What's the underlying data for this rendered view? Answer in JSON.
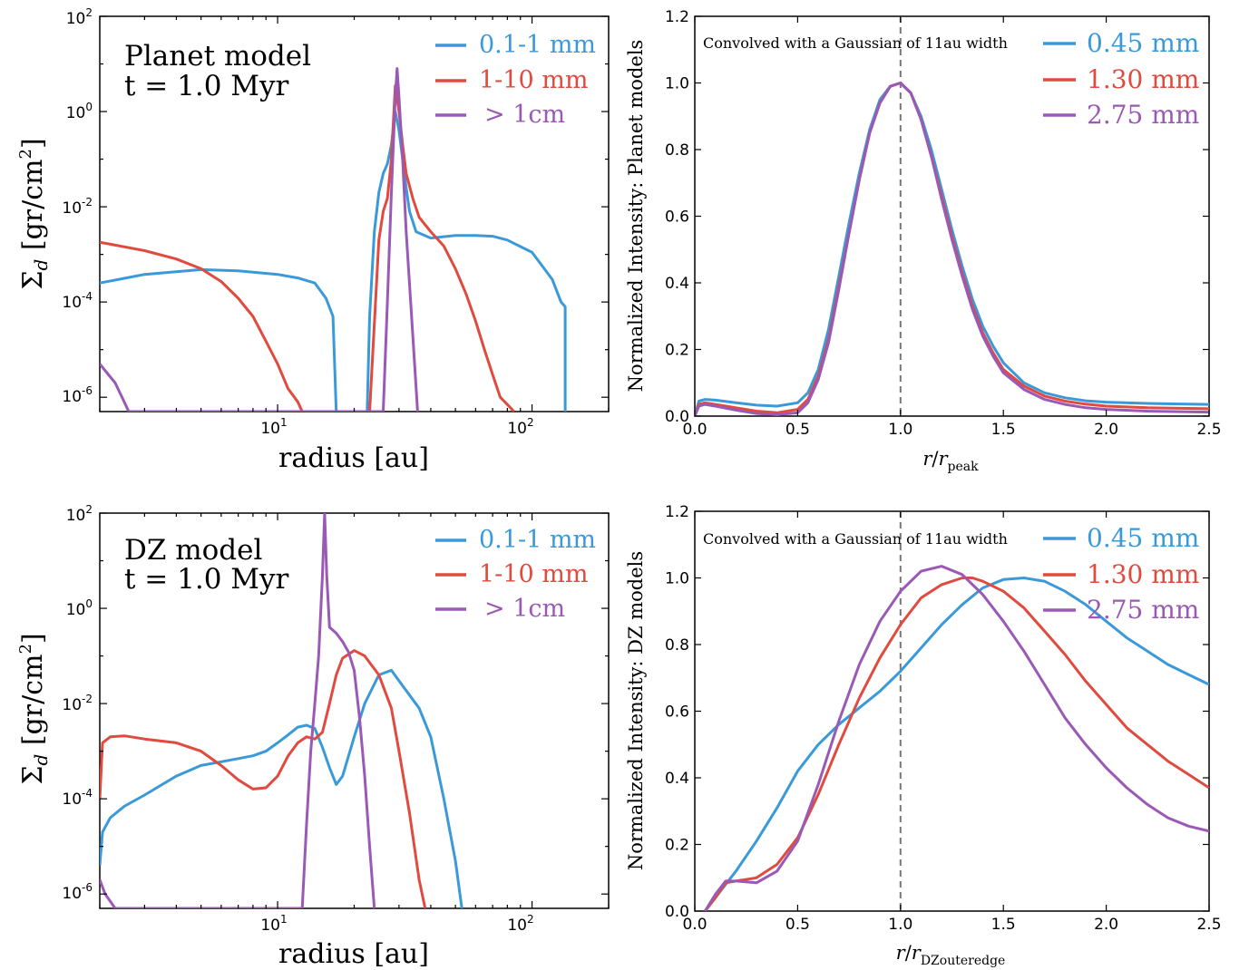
{
  "colors": {
    "blue": "#3a9ad9",
    "red": "#e04a3f",
    "purple": "#9b59b6",
    "axis": "#000000",
    "dash": "#777777"
  },
  "chart_data": [
    {
      "type": "line",
      "annotation": [
        "Planet model",
        "t = 1.0 Myr"
      ],
      "xlabel": "radius [au]",
      "ylabel": "Σ_d [gr/cm²]",
      "xscale": "log",
      "yscale": "log",
      "xlim": [
        2,
        200
      ],
      "ylim": [
        5e-07,
        100
      ],
      "xtick_labels": [
        "10^1",
        "10^2"
      ],
      "ytick_labels": [
        "10^2",
        "10^0",
        "10^-2",
        "10^-4",
        "10^-6"
      ],
      "legend": "top-right",
      "series": [
        {
          "name": "0.1-1 mm",
          "color": "blue",
          "x": [
            2,
            3,
            5,
            7,
            10,
            12,
            14,
            15.5,
            16.5,
            17,
            22.5,
            23,
            24,
            25,
            26,
            27,
            28,
            29,
            30,
            31,
            32,
            33,
            35,
            40,
            50,
            60,
            70,
            80,
            100,
            120,
            130,
            135,
            135
          ],
          "y": [
            0.00025,
            0.00038,
            0.00048,
            0.00045,
            0.00038,
            0.00032,
            0.00025,
            0.00012,
            5e-05,
            5e-07,
            5e-07,
            5e-05,
            0.003,
            0.02,
            0.05,
            0.08,
            0.2,
            1.0,
            0.4,
            0.1,
            0.025,
            0.008,
            0.003,
            0.0022,
            0.0025,
            0.0025,
            0.0024,
            0.002,
            0.0011,
            0.0003,
            0.0001,
            8e-05,
            5e-07
          ]
        },
        {
          "name": "1-10 mm",
          "color": "red",
          "x": [
            2,
            3,
            4,
            5,
            6,
            7,
            8,
            9,
            10,
            11,
            12,
            12.5,
            23,
            25,
            26,
            27,
            28,
            29,
            30,
            31,
            32,
            34,
            36,
            40,
            45,
            50,
            55,
            60,
            65,
            70,
            75,
            80,
            85
          ],
          "y": [
            0.0018,
            0.0012,
            0.0008,
            0.0005,
            0.00027,
            0.00012,
            5e-05,
            1.5e-05,
            5e-06,
            1.5e-06,
            8e-07,
            5e-07,
            5e-07,
            0.002,
            0.008,
            0.015,
            0.1,
            3.5,
            1.0,
            0.2,
            0.05,
            0.015,
            0.006,
            0.003,
            0.0015,
            0.0005,
            0.00015,
            4e-05,
            1e-05,
            3e-06,
            1e-06,
            7e-07,
            5e-07
          ]
        },
        {
          "name": "> 1cm",
          "color": "purple",
          "x": [
            2,
            2.3,
            2.6,
            26,
            27,
            28,
            29,
            29.5,
            30,
            31,
            32,
            34,
            35.5
          ],
          "y": [
            5e-06,
            2e-06,
            5e-07,
            5e-07,
            0.0001,
            0.02,
            2.0,
            8.0,
            2.0,
            0.1,
            0.003,
            2e-05,
            5e-07
          ]
        }
      ]
    },
    {
      "type": "line",
      "note": "Convolved with a Gaussian of 11au width",
      "xlabel": "r/r_peak",
      "ylabel": "Normalized Intensity: Planet models",
      "xlim": [
        0,
        2.5
      ],
      "ylim": [
        0,
        1.2
      ],
      "xticks": [
        0.0,
        0.5,
        1.0,
        1.5,
        2.0,
        2.5
      ],
      "yticks": [
        0.0,
        0.2,
        0.4,
        0.6,
        0.8,
        1.0,
        1.2
      ],
      "vline": 1.0,
      "legend": "top-right",
      "series": [
        {
          "name": "0.45 mm",
          "color": "blue",
          "x": [
            0,
            0.02,
            0.05,
            0.1,
            0.2,
            0.3,
            0.4,
            0.5,
            0.55,
            0.6,
            0.65,
            0.7,
            0.75,
            0.8,
            0.85,
            0.9,
            0.95,
            1.0,
            1.05,
            1.1,
            1.15,
            1.2,
            1.25,
            1.3,
            1.35,
            1.4,
            1.45,
            1.5,
            1.6,
            1.7,
            1.8,
            1.9,
            2.0,
            2.2,
            2.5
          ],
          "y": [
            0.0,
            0.045,
            0.05,
            0.048,
            0.04,
            0.033,
            0.03,
            0.04,
            0.07,
            0.14,
            0.26,
            0.42,
            0.58,
            0.73,
            0.86,
            0.95,
            0.99,
            1.0,
            0.97,
            0.9,
            0.8,
            0.68,
            0.56,
            0.45,
            0.35,
            0.27,
            0.21,
            0.16,
            0.1,
            0.07,
            0.055,
            0.046,
            0.042,
            0.038,
            0.035
          ]
        },
        {
          "name": "1.30 mm",
          "color": "red",
          "x": [
            0,
            0.02,
            0.05,
            0.1,
            0.2,
            0.3,
            0.4,
            0.5,
            0.55,
            0.6,
            0.65,
            0.7,
            0.75,
            0.8,
            0.85,
            0.9,
            0.95,
            1.0,
            1.05,
            1.1,
            1.15,
            1.2,
            1.25,
            1.3,
            1.35,
            1.4,
            1.45,
            1.5,
            1.6,
            1.7,
            1.8,
            1.9,
            2.0,
            2.2,
            2.5
          ],
          "y": [
            0.0,
            0.035,
            0.04,
            0.035,
            0.025,
            0.015,
            0.01,
            0.02,
            0.05,
            0.12,
            0.23,
            0.39,
            0.55,
            0.71,
            0.85,
            0.94,
            0.99,
            1.0,
            0.97,
            0.89,
            0.78,
            0.66,
            0.54,
            0.43,
            0.33,
            0.25,
            0.19,
            0.14,
            0.09,
            0.06,
            0.045,
            0.036,
            0.03,
            0.025,
            0.022
          ]
        },
        {
          "name": "2.75 mm",
          "color": "purple",
          "x": [
            0,
            0.02,
            0.05,
            0.1,
            0.2,
            0.3,
            0.4,
            0.5,
            0.55,
            0.6,
            0.65,
            0.7,
            0.75,
            0.8,
            0.85,
            0.9,
            0.95,
            1.0,
            1.05,
            1.1,
            1.15,
            1.2,
            1.25,
            1.3,
            1.35,
            1.4,
            1.45,
            1.5,
            1.6,
            1.7,
            1.8,
            1.9,
            2.0,
            2.2,
            2.5
          ],
          "y": [
            0.0,
            0.03,
            0.035,
            0.03,
            0.018,
            0.008,
            0.004,
            0.01,
            0.04,
            0.11,
            0.22,
            0.38,
            0.55,
            0.71,
            0.85,
            0.94,
            0.99,
            1.0,
            0.97,
            0.89,
            0.78,
            0.65,
            0.53,
            0.42,
            0.32,
            0.24,
            0.18,
            0.13,
            0.08,
            0.05,
            0.035,
            0.025,
            0.02,
            0.015,
            0.012
          ]
        }
      ]
    },
    {
      "type": "line",
      "annotation": [
        "DZ model",
        "t = 1.0 Myr"
      ],
      "xlabel": "radius [au]",
      "ylabel": "Σ_d [gr/cm²]",
      "xscale": "log",
      "yscale": "log",
      "xlim": [
        2,
        200
      ],
      "ylim": [
        5e-07,
        100
      ],
      "xtick_labels": [
        "10^1",
        "10^2"
      ],
      "ytick_labels": [
        "10^2",
        "10^0",
        "10^-2",
        "10^-4",
        "10^-6"
      ],
      "legend": "top-right",
      "series": [
        {
          "name": "0.1-1 mm",
          "color": "blue",
          "x": [
            2,
            2.05,
            2.2,
            2.5,
            3,
            4,
            5,
            6,
            7,
            8,
            9,
            10,
            11,
            12,
            13,
            14,
            15,
            16,
            17,
            18,
            20,
            22,
            25,
            28,
            30,
            33,
            36,
            40,
            45,
            50,
            53
          ],
          "y": [
            4e-06,
            2e-05,
            4e-05,
            7e-05,
            0.00012,
            0.0003,
            0.0005,
            0.0006,
            0.0007,
            0.0008,
            0.001,
            0.0015,
            0.0022,
            0.0032,
            0.0035,
            0.003,
            0.0012,
            0.00045,
            0.0002,
            0.0003,
            0.002,
            0.01,
            0.04,
            0.05,
            0.03,
            0.015,
            0.008,
            0.002,
            0.0001,
            5e-06,
            5e-07
          ]
        },
        {
          "name": "1-10 mm",
          "color": "red",
          "x": [
            2,
            2.05,
            2.2,
            2.5,
            3,
            4,
            5,
            6,
            7,
            8,
            9,
            10,
            11,
            12,
            13,
            14,
            15,
            16,
            17,
            18,
            20,
            22,
            25,
            28,
            30,
            33,
            36,
            38
          ],
          "y": [
            0.0001,
            0.0015,
            0.002,
            0.0021,
            0.0018,
            0.0015,
            0.001,
            0.0005,
            0.00025,
            0.00016,
            0.00017,
            0.0003,
            0.0008,
            0.0015,
            0.002,
            0.0018,
            0.0025,
            0.01,
            0.04,
            0.09,
            0.13,
            0.1,
            0.04,
            0.008,
            0.001,
            5e-05,
            2e-06,
            5e-07
          ]
        },
        {
          "name": "> 1cm",
          "color": "purple",
          "x": [
            2,
            2.1,
            2.2,
            2.3,
            12.5,
            13,
            13.5,
            14,
            14.5,
            15,
            15.3,
            15.6,
            16,
            17,
            18,
            19,
            20,
            21,
            22,
            23,
            24
          ],
          "y": [
            2e-06,
            1e-06,
            7e-07,
            5e-07,
            5e-07,
            3e-05,
            0.001,
            0.01,
            0.1,
            5.0,
            100,
            5.0,
            0.4,
            0.3,
            0.2,
            0.12,
            0.05,
            0.005,
            0.0003,
            1e-05,
            5e-07
          ]
        }
      ]
    },
    {
      "type": "line",
      "note": "Convolved with a Gaussian of 11au width",
      "xlabel": "r/r_DZouteredge",
      "ylabel": "Normalized Intensity: DZ models",
      "xlim": [
        0,
        2.5
      ],
      "ylim": [
        0,
        1.2
      ],
      "xticks": [
        0.0,
        0.5,
        1.0,
        1.5,
        2.0,
        2.5
      ],
      "yticks": [
        0.0,
        0.2,
        0.4,
        0.6,
        0.8,
        1.0,
        1.2
      ],
      "vline": 1.0,
      "legend": "top-right",
      "series": [
        {
          "name": "0.45 mm",
          "color": "blue",
          "x": [
            0.05,
            0.1,
            0.15,
            0.2,
            0.3,
            0.4,
            0.5,
            0.6,
            0.7,
            0.8,
            0.9,
            1.0,
            1.1,
            1.2,
            1.3,
            1.4,
            1.5,
            1.6,
            1.7,
            1.8,
            1.9,
            2.0,
            2.1,
            2.2,
            2.3,
            2.4,
            2.5
          ],
          "y": [
            0.0,
            0.04,
            0.08,
            0.12,
            0.21,
            0.31,
            0.42,
            0.5,
            0.56,
            0.61,
            0.66,
            0.72,
            0.79,
            0.86,
            0.92,
            0.97,
            0.995,
            1.0,
            0.99,
            0.96,
            0.92,
            0.87,
            0.82,
            0.78,
            0.74,
            0.71,
            0.68
          ]
        },
        {
          "name": "1.30 mm",
          "color": "red",
          "x": [
            0.05,
            0.1,
            0.15,
            0.2,
            0.3,
            0.4,
            0.5,
            0.6,
            0.7,
            0.8,
            0.9,
            1.0,
            1.1,
            1.2,
            1.3,
            1.35,
            1.4,
            1.5,
            1.6,
            1.7,
            1.8,
            1.9,
            2.0,
            2.1,
            2.2,
            2.3,
            2.4,
            2.5
          ],
          "y": [
            0.0,
            0.04,
            0.085,
            0.09,
            0.1,
            0.14,
            0.22,
            0.35,
            0.5,
            0.64,
            0.76,
            0.86,
            0.94,
            0.98,
            1.0,
            1.0,
            0.99,
            0.96,
            0.91,
            0.84,
            0.77,
            0.69,
            0.62,
            0.55,
            0.5,
            0.45,
            0.41,
            0.37
          ]
        },
        {
          "name": "2.75 mm",
          "color": "purple",
          "x": [
            0.05,
            0.1,
            0.15,
            0.2,
            0.3,
            0.4,
            0.5,
            0.6,
            0.7,
            0.8,
            0.9,
            1.0,
            1.1,
            1.2,
            1.3,
            1.4,
            1.5,
            1.6,
            1.7,
            1.8,
            1.9,
            2.0,
            2.1,
            2.2,
            2.3,
            2.4,
            2.5
          ],
          "y": [
            0.0,
            0.05,
            0.09,
            0.09,
            0.085,
            0.12,
            0.21,
            0.38,
            0.57,
            0.74,
            0.87,
            0.96,
            1.02,
            1.035,
            1.01,
            0.95,
            0.87,
            0.78,
            0.68,
            0.58,
            0.5,
            0.43,
            0.37,
            0.32,
            0.28,
            0.255,
            0.24
          ]
        }
      ]
    }
  ]
}
